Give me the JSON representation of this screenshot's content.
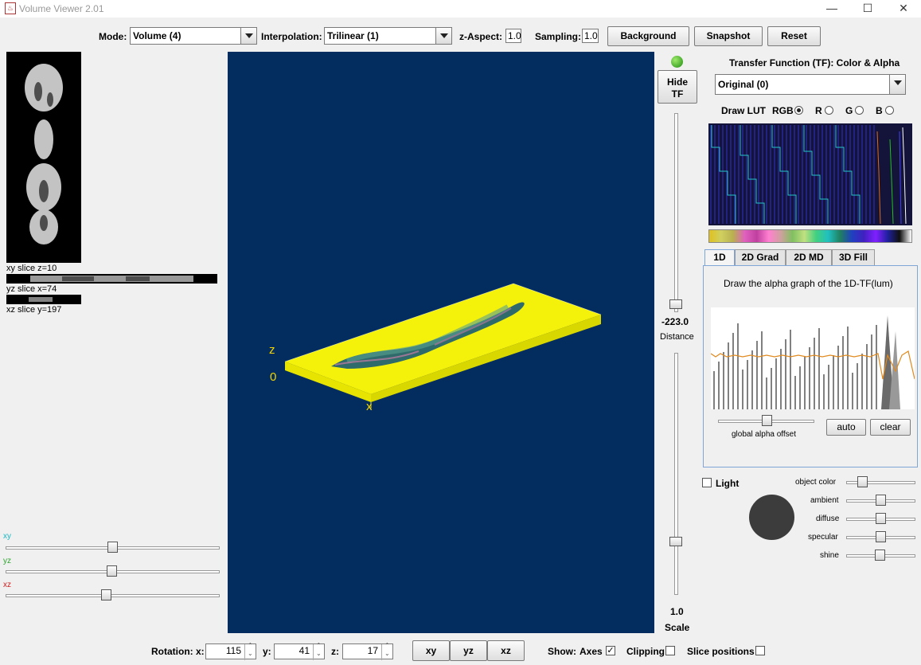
{
  "window": {
    "title": "Volume Viewer 2.01",
    "minimize": "—",
    "maximize": "☐",
    "close": "✕"
  },
  "toolbar": {
    "mode_label": "Mode:",
    "mode_value": "Volume (4)",
    "interp_label": "Interpolation:",
    "interp_value": "Trilinear (1)",
    "zaspect_label": "z-Aspect:",
    "zaspect_value": "1.0",
    "sampling_label": "Sampling:",
    "sampling_value": "1.0",
    "background": "Background",
    "snapshot": "Snapshot",
    "reset": "Reset"
  },
  "slices": {
    "xy": "xy slice  z=10",
    "yz": "yz slice  x=74",
    "xz": "xz slice  y=197"
  },
  "slice_sliders": {
    "xy_label": "xy",
    "xy_value": 0.5,
    "yz_label": "yz",
    "yz_value": 0.5,
    "xz_label": "xz",
    "xz_value": 0.47
  },
  "viewport": {
    "axis_z": "z",
    "axis_zero": "0",
    "axis_x": "x"
  },
  "center_controls": {
    "hide_tf": "Hide\nTF",
    "distance_value": "-223.0",
    "distance_label": "Distance",
    "scale_value": "1.0",
    "scale_label": "Scale"
  },
  "tf": {
    "title": "Transfer Function (TF): Color & Alpha",
    "preset": "Original (0)",
    "draw_lut": "Draw LUT",
    "rgb": "RGB",
    "r": "R",
    "g": "G",
    "b": "B",
    "tabs": [
      "1D",
      "2D Grad",
      "2D MD",
      "3D Fill"
    ],
    "hint": "Draw the alpha graph of the 1D-TF(lum)",
    "global_alpha": "global alpha offset",
    "auto": "auto",
    "clear": "clear"
  },
  "light": {
    "label": "Light",
    "object_color": "object color",
    "ambient": "ambient",
    "diffuse": "diffuse",
    "specular": "specular",
    "shine": "shine"
  },
  "bottom": {
    "rotation_label": "Rotation:  x:",
    "rot_x": "115",
    "y_label": "y:",
    "rot_y": "41",
    "z_label": "z:",
    "rot_z": "17",
    "xy": "xy",
    "yz": "yz",
    "xz": "xz",
    "show_label": "Show:",
    "axes": "Axes",
    "clipping": "Clipping",
    "slice_positions": "Slice positions"
  },
  "colors": {
    "viewport_bg": "#022d5e",
    "volume": "#f4f20a",
    "axis": "#f4d400"
  }
}
